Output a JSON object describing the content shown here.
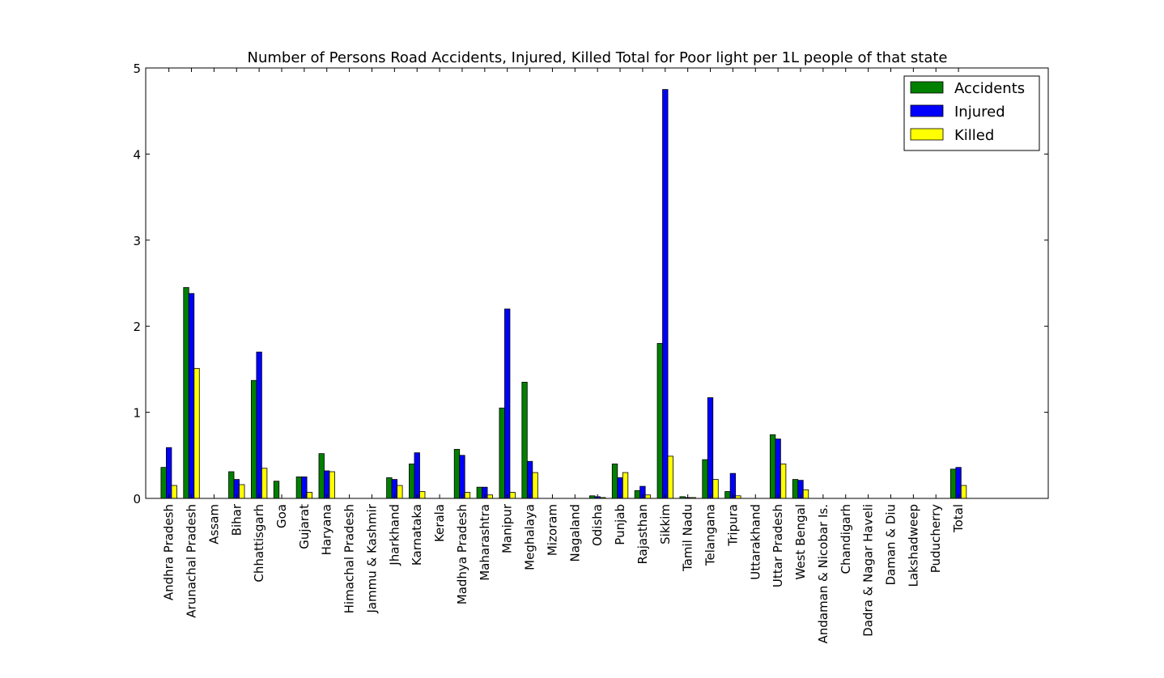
{
  "chart_data": {
    "type": "bar",
    "title": "Number of Persons Road Accidents, Injured, Killed Total for Poor light per 1L people of that state",
    "xlabel": "",
    "ylabel": "",
    "ylim": [
      0,
      5
    ],
    "yticks": [
      0,
      1,
      2,
      3,
      4,
      5
    ],
    "grid": false,
    "legend_position": "top-right",
    "categories": [
      "Andhra Pradesh",
      "Arunachal Pradesh",
      "Assam",
      "Bihar",
      "Chhattisgarh",
      "Goa",
      "Gujarat",
      "Haryana",
      "Himachal Pradesh",
      "Jammu & Kashmir",
      "Jharkhand",
      "Karnataka",
      "Kerala",
      "Madhya Pradesh",
      "Maharashtra",
      "Manipur",
      "Meghalaya",
      "Mizoram",
      "Nagaland",
      "Odisha",
      "Punjab",
      "Rajasthan",
      "Sikkim",
      "Tamil Nadu",
      "Telangana",
      "Tripura",
      "Uttarakhand",
      "Uttar Pradesh",
      "West Bengal",
      "Andaman & Nicobar Is.",
      "Chandigarh",
      "Dadra & Nagar Haveli",
      "Daman & Diu",
      "Lakshadweep",
      "Puducherry",
      "Total"
    ],
    "series": [
      {
        "name": "Accidents",
        "color": "#008000",
        "values": [
          0.36,
          2.45,
          0.0,
          0.31,
          1.37,
          0.2,
          0.25,
          0.52,
          0.0,
          0.0,
          0.24,
          0.4,
          0.0,
          0.57,
          0.13,
          1.05,
          1.35,
          0.0,
          0.0,
          0.03,
          0.4,
          0.09,
          1.8,
          0.02,
          0.45,
          0.08,
          0.0,
          0.74,
          0.22,
          0.0,
          0.0,
          0.0,
          0.0,
          0.0,
          0.0,
          0.34
        ]
      },
      {
        "name": "Injured",
        "color": "#0000ff",
        "values": [
          0.59,
          2.38,
          0.0,
          0.22,
          1.7,
          0.0,
          0.25,
          0.32,
          0.0,
          0.0,
          0.22,
          0.53,
          0.0,
          0.5,
          0.13,
          2.2,
          0.43,
          0.0,
          0.0,
          0.02,
          0.24,
          0.14,
          4.75,
          0.01,
          1.17,
          0.29,
          0.0,
          0.69,
          0.21,
          0.0,
          0.0,
          0.0,
          0.0,
          0.0,
          0.0,
          0.36
        ]
      },
      {
        "name": "Killed",
        "color": "#ffff00",
        "values": [
          0.15,
          1.51,
          0.0,
          0.16,
          0.35,
          0.0,
          0.07,
          0.31,
          0.0,
          0.0,
          0.15,
          0.08,
          0.0,
          0.07,
          0.04,
          0.07,
          0.3,
          0.0,
          0.0,
          0.01,
          0.3,
          0.04,
          0.49,
          0.01,
          0.22,
          0.03,
          0.0,
          0.4,
          0.1,
          0.0,
          0.0,
          0.0,
          0.0,
          0.0,
          0.0,
          0.15
        ]
      }
    ]
  }
}
